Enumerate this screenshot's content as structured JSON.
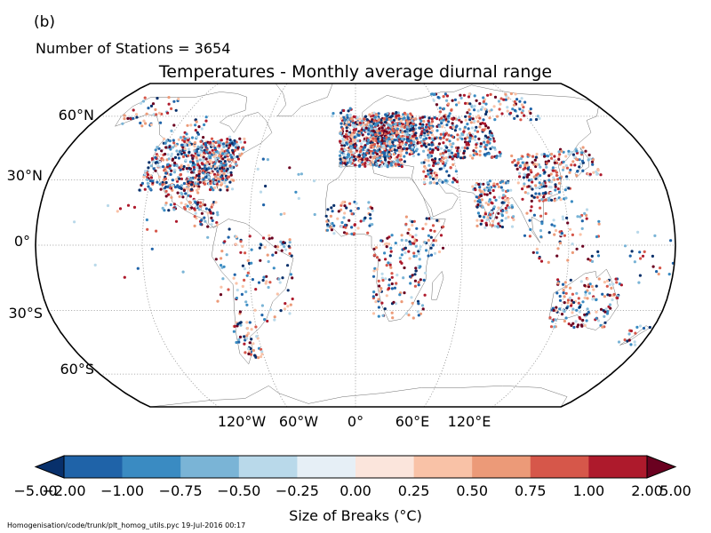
{
  "panel_label": "(b)",
  "station_count_text": "Number of Stations = 3654",
  "title": "Temperatures - Monthly average diurnal range",
  "lat_labels": [
    "60°N",
    "30°N",
    "0°",
    "30°S",
    "60°S"
  ],
  "lon_labels": [
    "120°W",
    "60°W",
    "0°",
    "60°E",
    "120°E"
  ],
  "colorbar": {
    "label": "Size of Breaks ($^\\circ$C)",
    "label_display": "Size of Breaks (°C)",
    "ticks": [
      "−5.00",
      "−2.00",
      "−1.00",
      "−0.75",
      "−0.50",
      "−0.25",
      "0.00",
      "0.25",
      "0.50",
      "0.75",
      "1.00",
      "2.00",
      "5.00"
    ],
    "colors": [
      "#053061",
      "#2166ac",
      "#4393c3",
      "#92c5de",
      "#d1e5f0",
      "#f7f7f7",
      "#fddbc7",
      "#f4a582",
      "#d6604d",
      "#b2182b",
      "#67001f"
    ],
    "box_colors": [
      "#08306b",
      "#1f63a8",
      "#3a8bc2",
      "#7ab4d6",
      "#b9d9ea",
      "#e6eff6",
      "#fbe5dc",
      "#f9c2a7",
      "#ec9a78",
      "#d6574a",
      "#ae1a2c",
      "#6a0120"
    ]
  },
  "footer": "Homogenisation/code/trunk/plt_homog_utils.pyc   19-Jul-2016 00:17",
  "station_colors": [
    "#08306b",
    "#1f63a8",
    "#3a8bc2",
    "#7ab4d6",
    "#b9d9ea",
    "#f9c2a7",
    "#ec9a78",
    "#d6574a",
    "#ae1a2c",
    "#6a0120"
  ]
}
